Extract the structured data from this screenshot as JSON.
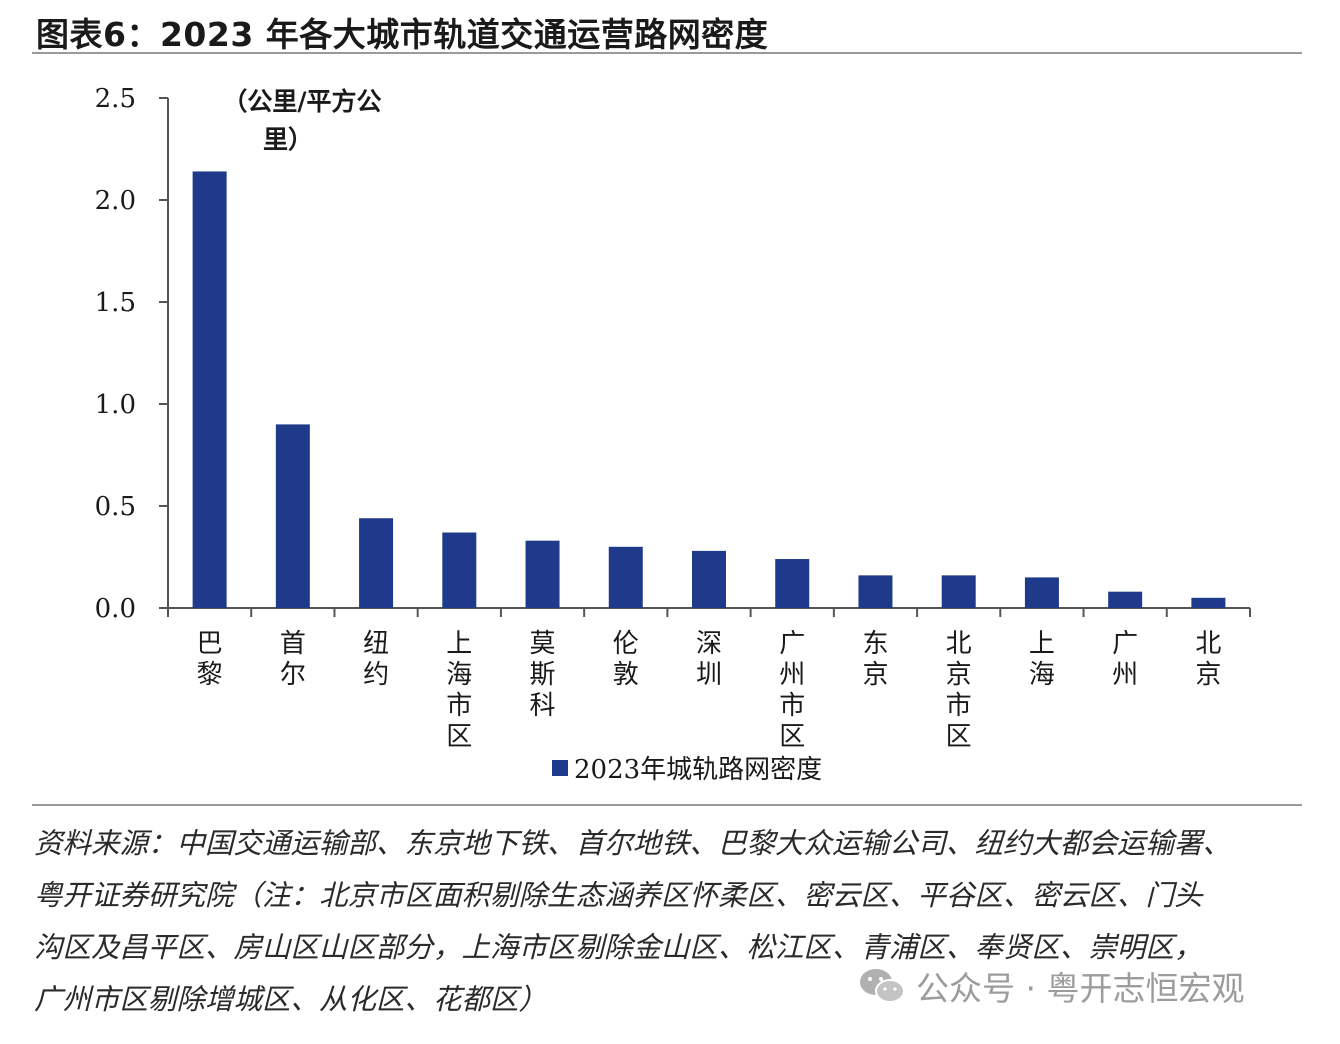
{
  "title": "图表6：2023 年各大城市轨道交通运营路网密度",
  "source_lines": [
    "资料来源：中国交通运输部、东京地下铁、首尔地铁、巴黎大众运输公司、纽约大都会运输署、",
    "粤开证券研究院（注：北京市区面积剔除生态涵养区怀柔区、密云区、平谷区、密云区、门头",
    "沟区及昌平区、房山区山区部分，上海市区剔除金山区、松江区、青浦区、奉贤区、崇明区，",
    "广州市区剔除增城区、从化区、花都区）"
  ],
  "watermark": "公众号 · 粤开志恒宏观",
  "colors": {
    "bar": "#1f3a8a",
    "axis": "#555555",
    "text": "#1a1a1a"
  },
  "chart_data": {
    "type": "bar",
    "categories": [
      "巴黎",
      "首尔",
      "纽约",
      "上海市区",
      "莫斯科",
      "伦敦",
      "深圳",
      "广州市区",
      "东京",
      "北京市区",
      "上海",
      "广州",
      "北京"
    ],
    "series": [
      {
        "name": "2023年城轨路网密度",
        "values": [
          2.14,
          0.9,
          0.44,
          0.37,
          0.33,
          0.3,
          0.28,
          0.24,
          0.16,
          0.16,
          0.15,
          0.08,
          0.05
        ]
      }
    ],
    "ylabel": "（公里/平方公里）",
    "ylim": [
      0,
      2.5
    ],
    "yticks": [
      "0.0",
      "0.5",
      "1.0",
      "1.5",
      "2.0",
      "2.5"
    ],
    "grid": false,
    "legend": "bottom"
  }
}
